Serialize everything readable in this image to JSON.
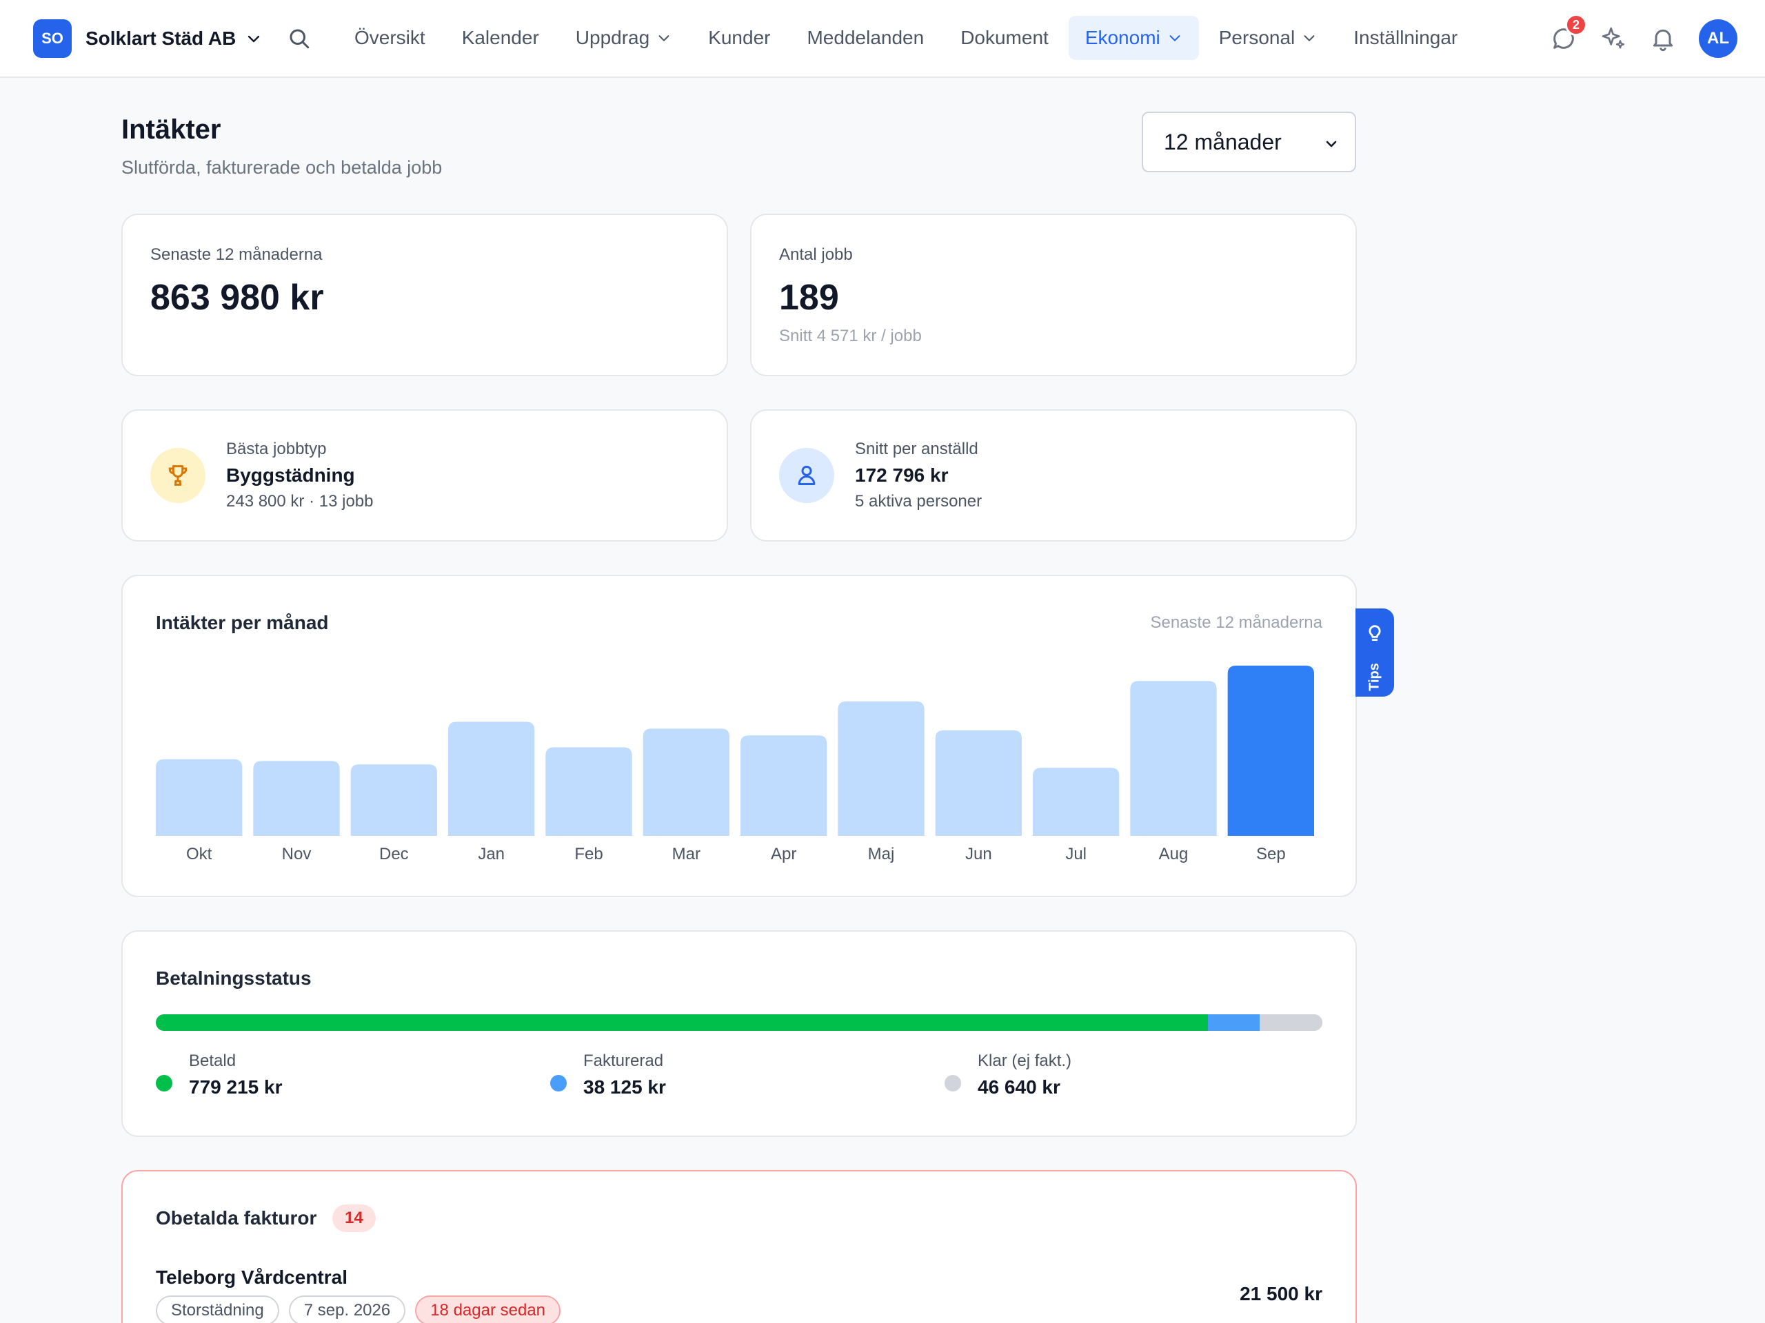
{
  "brand": {
    "initials": "SO",
    "name": "Solklart Städ AB"
  },
  "nav": {
    "items": [
      {
        "label": "Översikt"
      },
      {
        "label": "Kalender"
      },
      {
        "label": "Uppdrag"
      },
      {
        "label": "Kunder"
      },
      {
        "label": "Meddelanden"
      },
      {
        "label": "Dokument"
      },
      {
        "label": "Ekonomi"
      },
      {
        "label": "Personal"
      },
      {
        "label": "Inställningar"
      }
    ],
    "active": "Ekonomi",
    "messages_badge": "2",
    "avatar_initials": "AL"
  },
  "header": {
    "title": "Intäkter",
    "subtitle": "Slutförda, fakturerade och betalda jobb",
    "period_selected": "12 månader"
  },
  "stats": {
    "revenue": {
      "label": "Senaste 12 månaderna",
      "value": "863 980 kr"
    },
    "jobs": {
      "label": "Antal jobb",
      "value": "189",
      "sub": "Snitt 4 571 kr / jobb"
    }
  },
  "info": {
    "best_job_type": {
      "label": "Bästa jobbtyp",
      "value": "Byggstädning",
      "sub": "243 800 kr · 13 jobb",
      "icon": "trophy-icon",
      "icon_bg": "#fef3c7",
      "icon_color": "#d97706"
    },
    "per_employee": {
      "label": "Snitt per anställd",
      "value": "172 796 kr",
      "sub": "5 aktiva personer",
      "icon": "user-icon",
      "icon_bg": "#dbeafe",
      "icon_color": "#2563eb"
    }
  },
  "revenue_chart": {
    "title": "Intäkter per månad",
    "note": "Senaste 12 månaderna",
    "colors": {
      "bar": "#bfdbfe",
      "highlight": "#2f7ff6"
    }
  },
  "chart_data": {
    "type": "bar",
    "title": "Intäkter per månad",
    "categories": [
      "Okt",
      "Nov",
      "Dec",
      "Jan",
      "Feb",
      "Mar",
      "Apr",
      "Maj",
      "Jun",
      "Jul",
      "Aug",
      "Sep"
    ],
    "values": [
      45,
      44,
      42,
      67,
      52,
      63,
      59,
      79,
      62,
      40,
      91,
      100
    ],
    "value_scale": "relative (max = 100), no value axis printed",
    "highlighted": "Sep",
    "ylim": [
      0,
      100
    ],
    "grid": false
  },
  "payment_status": {
    "title": "Betalningsstatus",
    "segments": [
      {
        "label": "Betald",
        "value": "779 215 kr",
        "amount": 779215,
        "color": "#00c04b"
      },
      {
        "label": "Fakturerad",
        "value": "38 125 kr",
        "amount": 38125,
        "color": "#4a9df8"
      },
      {
        "label": "Klar (ej fakt.)",
        "value": "46 640 kr",
        "amount": 46640,
        "color": "#d1d5db"
      }
    ]
  },
  "unpaid": {
    "title": "Obetalda fakturor",
    "count": "14",
    "invoices": [
      {
        "customer": "Teleborg Vårdcentral",
        "type": "Storstädning",
        "date": "7 sep. 2026",
        "age": "18 dagar sedan",
        "amount": "21 500 kr"
      }
    ]
  },
  "tips": {
    "label": "Tips"
  }
}
